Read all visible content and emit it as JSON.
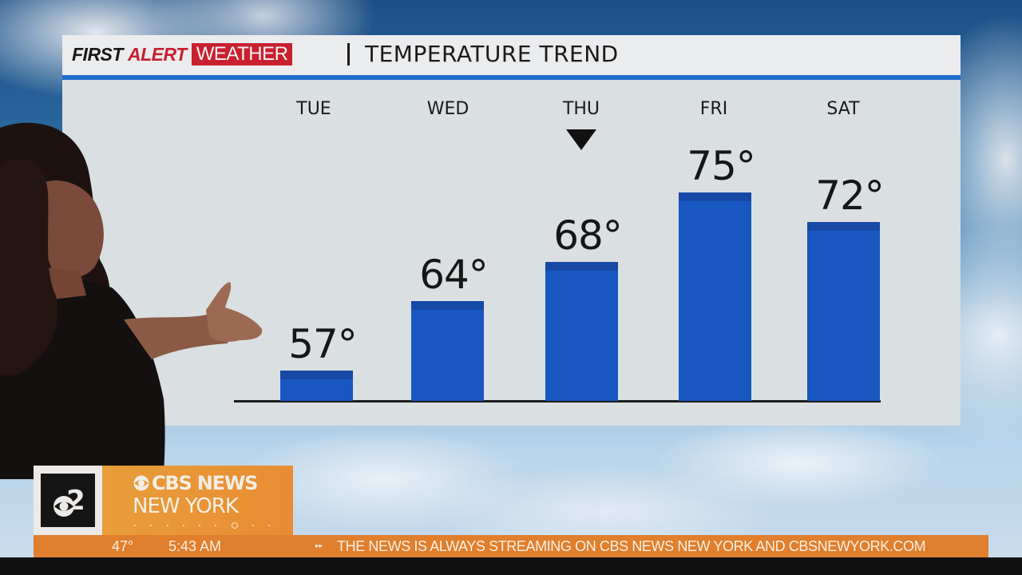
{
  "header": {
    "brand_first": "FIRST",
    "brand_alert": "ALERT",
    "brand_weather": "WEATHER",
    "separator": "|",
    "title": "TEMPERATURE TREND"
  },
  "colors": {
    "bar": "#1857c0",
    "bar_cap": "#1649a6",
    "header_line": "#1f6fcf",
    "brand_red": "#c8202f",
    "ticker_orange": "#e07f2e",
    "panel_bg": "#dadfe1"
  },
  "chart_data": {
    "type": "bar",
    "title": "TEMPERATURE TREND",
    "categories": [
      "TUE",
      "WED",
      "THU",
      "FRI",
      "SAT"
    ],
    "values": [
      57,
      64,
      68,
      75,
      72
    ],
    "value_labels": [
      "57°",
      "64°",
      "68°",
      "75°",
      "72°"
    ],
    "unit": "°F",
    "highlighted_category": "THU",
    "xlabel": "",
    "ylabel": "",
    "grid": false,
    "legend": null
  },
  "lower_third": {
    "channel_number": "2",
    "network": "CBS NEWS",
    "market": "NEW YORK"
  },
  "ticker": {
    "current_temp": "47°",
    "time": "5:43 AM",
    "arrows": "▸▸",
    "message": "THE NEWS IS ALWAYS STREAMING ON CBS NEWS NEW YORK AND CBSNEWYORK.COM"
  }
}
